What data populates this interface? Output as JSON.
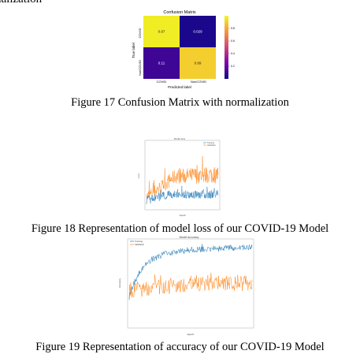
{
  "top_fragment": "nalization",
  "figures": [
    {
      "caption": "Figure 17 Confusion Matrix with normalization",
      "chart_data": {
        "type": "heatmap",
        "title": "Confusion Matrix",
        "xlabel": "Predicted label",
        "ylabel": "True label",
        "x_categories": [
          "COVID",
          "NonCOVID"
        ],
        "y_categories": [
          "COVID",
          "NonCOVID"
        ],
        "values": [
          [
            0.97,
            0.029
          ],
          [
            0.11,
            0.89
          ]
        ],
        "value_labels": [
          [
            "0.97",
            "0.029"
          ],
          [
            "0.11",
            "0.89"
          ]
        ],
        "colorbar_ticks": [
          "0.8",
          "0.6",
          "0.4",
          "0.2"
        ],
        "colorbar_range": [
          0,
          1
        ],
        "colormap": "plasma"
      }
    },
    {
      "caption": "Figure 18 Representation of model loss of our COVID-19 Model",
      "chart_data": {
        "type": "line",
        "title": "Model loss",
        "xlabel": "Epoch",
        "ylabel": "Loss",
        "legend": "top-right",
        "grid": false,
        "series": [
          {
            "name": "Training",
            "color": "#1f77b4"
          },
          {
            "name": "Validation",
            "color": "#ff7f0e"
          }
        ]
      }
    },
    {
      "caption": "Figure 19 Representation of  accuracy of our COVID-19 Model",
      "chart_data": {
        "type": "line",
        "title": "Model Accuracy",
        "xlabel": "Epoch",
        "ylabel": "Accuracy",
        "legend": "top-left",
        "grid": false,
        "series": [
          {
            "name": "Training",
            "color": "#1f77b4"
          },
          {
            "name": "Validation",
            "color": "#ff7f0e"
          }
        ]
      }
    }
  ]
}
